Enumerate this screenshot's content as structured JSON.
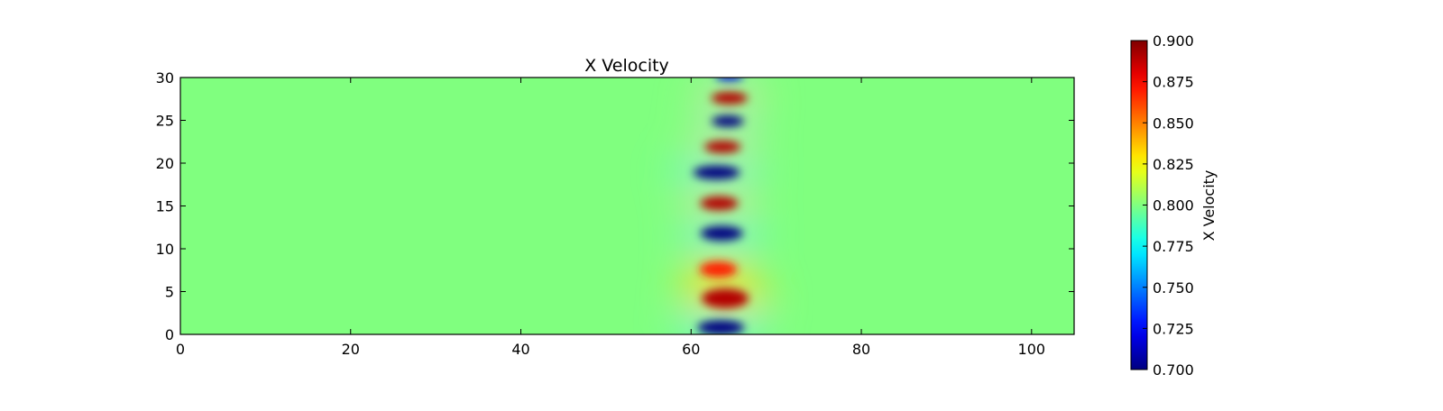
{
  "chart_data": {
    "type": "heatmap",
    "title": "X Velocity",
    "xlabel": "",
    "ylabel": "",
    "xlim": [
      0,
      105
    ],
    "ylim": [
      0,
      30
    ],
    "x_ticks": [
      0,
      20,
      40,
      60,
      80,
      100
    ],
    "y_ticks": [
      0,
      5,
      10,
      15,
      20,
      25,
      30
    ],
    "colormap": "jet",
    "background_value": 0.8,
    "colorbar": {
      "label": "X Velocity",
      "range": [
        0.7,
        0.9
      ],
      "ticks": [
        "0.700",
        "0.725",
        "0.750",
        "0.775",
        "0.800",
        "0.825",
        "0.850",
        "0.875",
        "0.900"
      ]
    },
    "features": [
      {
        "x": 63.5,
        "y": 0.8,
        "width": 5.5,
        "height": 1.7,
        "value": 0.7
      },
      {
        "x": 64.0,
        "y": 4.2,
        "width": 5.5,
        "height": 2.3,
        "value": 0.89
      },
      {
        "x": 63.2,
        "y": 7.6,
        "width": 4.4,
        "height": 1.8,
        "value": 0.87
      },
      {
        "x": 63.6,
        "y": 11.8,
        "width": 5.0,
        "height": 1.7,
        "value": 0.7
      },
      {
        "x": 63.3,
        "y": 15.3,
        "width": 4.5,
        "height": 1.6,
        "value": 0.89
      },
      {
        "x": 63.0,
        "y": 18.9,
        "width": 5.5,
        "height": 1.6,
        "value": 0.7
      },
      {
        "x": 63.7,
        "y": 21.9,
        "width": 4.3,
        "height": 1.4,
        "value": 0.89
      },
      {
        "x": 64.3,
        "y": 24.9,
        "width": 3.8,
        "height": 1.3,
        "value": 0.7
      },
      {
        "x": 64.5,
        "y": 27.6,
        "width": 4.3,
        "height": 1.4,
        "value": 0.89
      },
      {
        "x": 64.5,
        "y": 30.1,
        "width": 3.3,
        "height": 0.9,
        "value": 0.72
      }
    ]
  }
}
